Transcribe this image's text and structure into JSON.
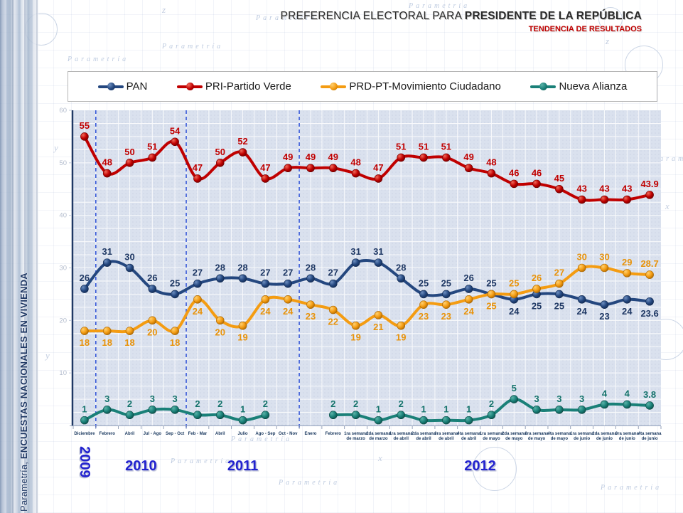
{
  "header": {
    "title_regular": "PREFERENCIA ELECTORAL PARA ",
    "title_bold": "PRESIDENTE DE LA REPÚBLICA",
    "subtitle": "TENDENCIA DE RESULTADOS"
  },
  "sidebar": {
    "brand": "Parametría, ",
    "caption": "ENCUESTAS NACIONALES EN VIVIENDA"
  },
  "decor": {
    "watermark": "Parametría",
    "axis_letters": [
      "y",
      "z",
      "x"
    ]
  },
  "years": [
    {
      "label": "2009",
      "span": [
        0,
        0
      ]
    },
    {
      "label": "2010",
      "span": [
        1,
        4
      ]
    },
    {
      "label": "2011",
      "span": [
        5,
        9
      ]
    },
    {
      "label": "2012",
      "span": [
        10,
        25
      ]
    }
  ],
  "chart_data": {
    "type": "line",
    "title": "Preferencia electoral para Presidente de la República - tendencia de resultados",
    "categories": [
      "Diciembre",
      "Febrero",
      "Abril",
      "Jul - Ago",
      "Sep - Oct",
      "Feb - Mar",
      "Abril",
      "Julio",
      "Ago - Sep",
      "Oct - Nov",
      "Enero",
      "Febrero",
      "1ra semana de marzo",
      "2da semana de marzo",
      "1ra semana de abril",
      "2da semana de abril",
      "3ra semana de abril",
      "4ta semana de abril",
      "1ra semana de mayo",
      "2da semana de mayo",
      "3ra semana de mayo",
      "4ta semana de mayo",
      "1ra semana de junio",
      "2da semana de junio",
      "3ra semana de junio",
      "4ta semana de junio"
    ],
    "series": [
      {
        "name": "PAN",
        "color": "#24477F",
        "light": "#6E8FC0",
        "dark": "#122A52",
        "label_color": "#1F3864",
        "labels": "above",
        "flip_at": 19,
        "values": [
          26,
          31,
          30,
          26,
          25,
          27,
          28,
          28,
          27,
          27,
          28,
          27,
          31,
          31,
          28,
          25,
          25,
          26,
          25,
          24,
          25,
          25,
          24,
          23,
          24,
          23.6
        ]
      },
      {
        "name": "PRI-Partido Verde",
        "color": "#C00000",
        "light": "#F06A5A",
        "dark": "#700000",
        "label_color": "#C00000",
        "labels": "above",
        "flip_at": null,
        "values": [
          55,
          48,
          50,
          51,
          54,
          47,
          50,
          52,
          47,
          49,
          49,
          49,
          48,
          47,
          51,
          51,
          51,
          49,
          48,
          46,
          46,
          45,
          43,
          43,
          43,
          43.9
        ]
      },
      {
        "name": "PRD-PT-Movimiento Ciudadano",
        "color": "#F49C12",
        "light": "#FFD070",
        "dark": "#A86400",
        "label_color": "#E8930B",
        "labels": "below",
        "flip_at": 19,
        "values": [
          18,
          18,
          18,
          20,
          18,
          24,
          20,
          19,
          24,
          24,
          23,
          22,
          19,
          21,
          19,
          23,
          23,
          24,
          25,
          25,
          26,
          27,
          30,
          30,
          29,
          28.7
        ]
      },
      {
        "name": "Nueva Alianza",
        "color": "#1A8078",
        "light": "#5BB3A8",
        "dark": "#0B4A45",
        "label_color": "#15736C",
        "labels": "above",
        "flip_at": null,
        "values": [
          1,
          3,
          2,
          3,
          3,
          2,
          2,
          1,
          2,
          null,
          null,
          2,
          2,
          1,
          2,
          1,
          1,
          1,
          2,
          5,
          3,
          3,
          3,
          4,
          4,
          3.8
        ]
      }
    ],
    "ylim": [
      0,
      60
    ],
    "yticks": [
      10,
      20,
      30,
      40,
      50,
      60
    ],
    "grid": true,
    "legend_position": "top",
    "year_dividers_after_index": [
      0,
      4,
      9
    ]
  }
}
